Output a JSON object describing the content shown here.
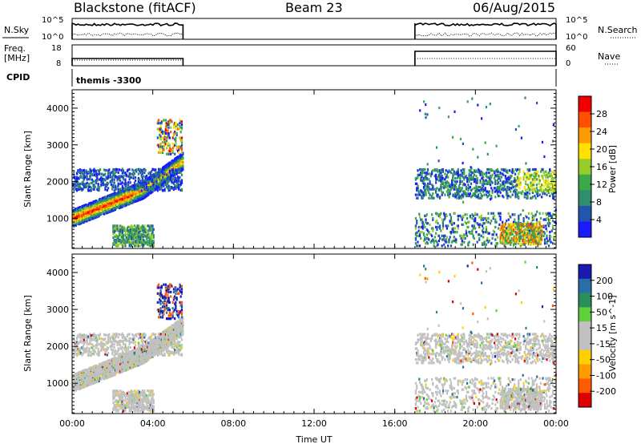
{
  "header": {
    "radar": "Blackstone (fitACF)",
    "beam": "Beam 23",
    "date": "06/Aug/2015"
  },
  "strip_top": {
    "left_label": "N.Sky",
    "right_label": "N.Search",
    "left_ticks": [
      "10^5",
      "10^0"
    ],
    "right_ticks": [
      "10^5",
      "10^0"
    ]
  },
  "strip_freq": {
    "left_label_line1": "Freq.",
    "left_label_line2": "[MHz]",
    "right_label": "Nave",
    "left_ticks": [
      "18",
      "8"
    ],
    "right_ticks": [
      "60",
      "0"
    ]
  },
  "cpid": {
    "label": "CPID",
    "value": "themis -3300"
  },
  "colors": {
    "power_scale": [
      "#1a1aff",
      "#2255b0",
      "#2f8f6c",
      "#3ca84a",
      "#98cc2a",
      "#ffe000",
      "#ff9a00",
      "#ff5000",
      "#f00000"
    ],
    "velocity_scale": [
      "#e00000",
      "#ff5a00",
      "#ff9a00",
      "#ffd000",
      "#c0c0c0",
      "#c0c0c0",
      "#5fd03a",
      "#2a8f5a",
      "#2a6ea8",
      "#1a1ab0"
    ]
  },
  "chart_data": [
    {
      "type": "heatmap",
      "quantity": "Power",
      "xlabel": "",
      "ylabel": "Slant Range [km]",
      "colorbar_label": "Power [dB]",
      "colorbar_ticks": [
        "4",
        "8",
        "12",
        "16",
        "20",
        "24",
        "28"
      ],
      "xlim": [
        0,
        24
      ],
      "ylim": [
        180,
        4500
      ],
      "yticks": [
        "1000",
        "2000",
        "3000",
        "4000"
      ],
      "x_tick_values": [
        0,
        4,
        8,
        12,
        16,
        20,
        24
      ],
      "data_windows_hours": [
        [
          0,
          5.5
        ],
        [
          17,
          24
        ]
      ]
    },
    {
      "type": "heatmap",
      "quantity": "Velocity",
      "xlabel": "Time UT",
      "ylabel": "Slant Range [km]",
      "colorbar_label": "Velocity [m s^-1]",
      "colorbar_ticks": [
        "-200",
        "-100",
        "-50",
        "-15",
        "15",
        "50",
        "100",
        "200"
      ],
      "xlim": [
        0,
        24
      ],
      "ylim": [
        180,
        4500
      ],
      "yticks": [
        "1000",
        "2000",
        "3000",
        "4000"
      ],
      "xticks": [
        "00:00",
        "04:00",
        "08:00",
        "12:00",
        "16:00",
        "20:00",
        "00:00"
      ],
      "data_windows_hours": [
        [
          0,
          5.5
        ],
        [
          17,
          24
        ]
      ]
    }
  ]
}
